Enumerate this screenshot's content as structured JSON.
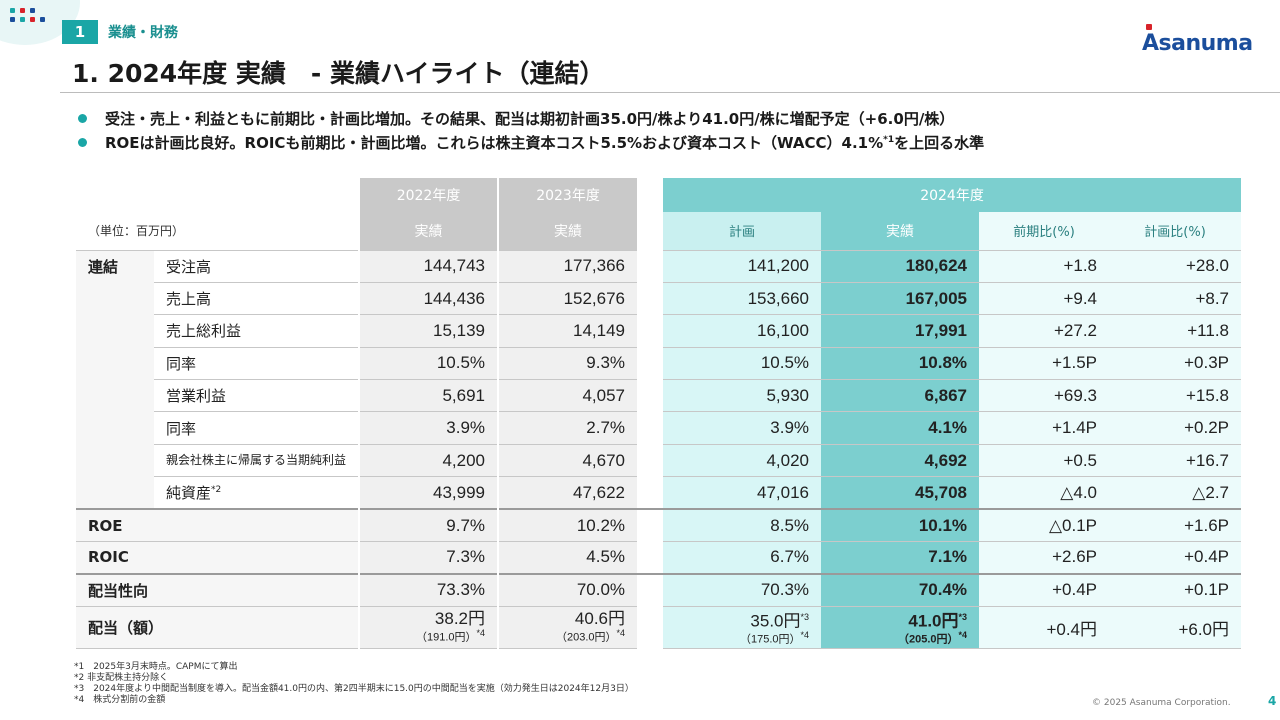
{
  "header": {
    "section_number": "1",
    "section_label": "業績・財務",
    "logo_text": "Asanuma",
    "title": "1. 2024年度 実績　- 業績ハイライト（連結）"
  },
  "bullets": [
    {
      "text": "受注・売上・利益ともに前期比・計画比増加。その結果、配当は期初計画35.0円/株より41.0円/株に増配予定（+6.0円/株）",
      "sup": ""
    },
    {
      "text_before": "ROEは計画比良好。ROICも前期比・計画比増。これらは株主資本コスト5.5%および資本コスト（WACC）4.1%",
      "sup": "*1",
      "text_after": "を上回る水準"
    }
  ],
  "table": {
    "unit": "（単位：百万円）",
    "headers": {
      "fy2022": "2022年度",
      "fy2023": "2023年度",
      "fy2024": "2024年度",
      "actual": "実績",
      "plan": "計画",
      "yoy": "前期比(%)",
      "vs_plan": "計画比(%)"
    },
    "rows": [
      {
        "cat": "連結",
        "label": "受注高",
        "v2022": "144,743",
        "v2023": "177,366",
        "plan": "141,200",
        "actual": "180,624",
        "yoy": "+1.8",
        "vs_plan": "+28.0"
      },
      {
        "cat": "",
        "label": "売上高",
        "v2022": "144,436",
        "v2023": "152,676",
        "plan": "153,660",
        "actual": "167,005",
        "yoy": "+9.4",
        "vs_plan": "+8.7"
      },
      {
        "cat": "",
        "label": "売上総利益",
        "v2022": "15,139",
        "v2023": "14,149",
        "plan": "16,100",
        "actual": "17,991",
        "yoy": "+27.2",
        "vs_plan": "+11.8"
      },
      {
        "cat": "",
        "label": "同率",
        "v2022": "10.5%",
        "v2023": "9.3%",
        "plan": "10.5%",
        "actual": "10.8%",
        "yoy": "+1.5P",
        "vs_plan": "+0.3P"
      },
      {
        "cat": "",
        "label": "営業利益",
        "v2022": "5,691",
        "v2023": "4,057",
        "plan": "5,930",
        "actual": "6,867",
        "yoy": "+69.3",
        "vs_plan": "+15.8"
      },
      {
        "cat": "",
        "label": "同率",
        "v2022": "3.9%",
        "v2023": "2.7%",
        "plan": "3.9%",
        "actual": "4.1%",
        "yoy": "+1.4P",
        "vs_plan": "+0.2P"
      },
      {
        "cat": "",
        "label": "親会社株主に帰属する当期純利益",
        "v2022": "4,200",
        "v2023": "4,670",
        "plan": "4,020",
        "actual": "4,692",
        "yoy": "+0.5",
        "vs_plan": "+16.7"
      },
      {
        "cat": "",
        "label": "純資産",
        "label_sup": "*2",
        "v2022": "43,999",
        "v2023": "47,622",
        "plan": "47,016",
        "actual": "45,708",
        "yoy": "△4.0",
        "vs_plan": "△2.7"
      },
      {
        "cat": "ROE",
        "label": "",
        "v2022": "9.7%",
        "v2023": "10.2%",
        "plan": "8.5%",
        "actual": "10.1%",
        "yoy": "△0.1P",
        "vs_plan": "+1.6P"
      },
      {
        "cat": "ROIC",
        "label": "",
        "v2022": "7.3%",
        "v2023": "4.5%",
        "plan": "6.7%",
        "actual": "7.1%",
        "yoy": "+2.6P",
        "vs_plan": "+0.4P"
      },
      {
        "cat": "配当性向",
        "label": "",
        "v2022": "73.3%",
        "v2023": "70.0%",
        "plan": "70.3%",
        "actual": "70.4%",
        "yoy": "+0.4P",
        "vs_plan": "+0.1P"
      }
    ],
    "dividend": {
      "cat": "配当（額）",
      "v2022": "38.2円",
      "v2022_sub": "（191.0円）",
      "v2022_sub_sup": "*4",
      "v2023": "40.6円",
      "v2023_sub": "（203.0円）",
      "v2023_sub_sup": "*4",
      "plan": "35.0円",
      "plan_sup": "*3",
      "plan_sub": "（175.0円）",
      "plan_sub_sup": "*4",
      "actual": "41.0円",
      "actual_sup": "*3",
      "actual_sub": "（205.0円）",
      "actual_sub_sup": "*4",
      "yoy": "+0.4円",
      "vs_plan": "+6.0円"
    }
  },
  "footnotes": [
    "*1　2025年3月末時点。CAPMにて算出",
    "*2 非支配株主持分除く",
    "*3　2024年度より中間配当制度を導入。配当金額41.0円の内、第2四半期末に15.0円の中間配当を実施（効力発生日は2024年12月3日）",
    "*4　株式分割前の金額"
  ],
  "footer": {
    "copyright": "© 2025 Asanuma Corporation.",
    "page": "4"
  },
  "colors": {
    "teal": "#1aa6a6",
    "teal_dark_col": "#7ccfcf",
    "teal_light_col": "#d8f6f6",
    "gray_header": "#c9c9c9",
    "logo_blue": "#1b4e9c",
    "logo_red": "#d8232a"
  }
}
